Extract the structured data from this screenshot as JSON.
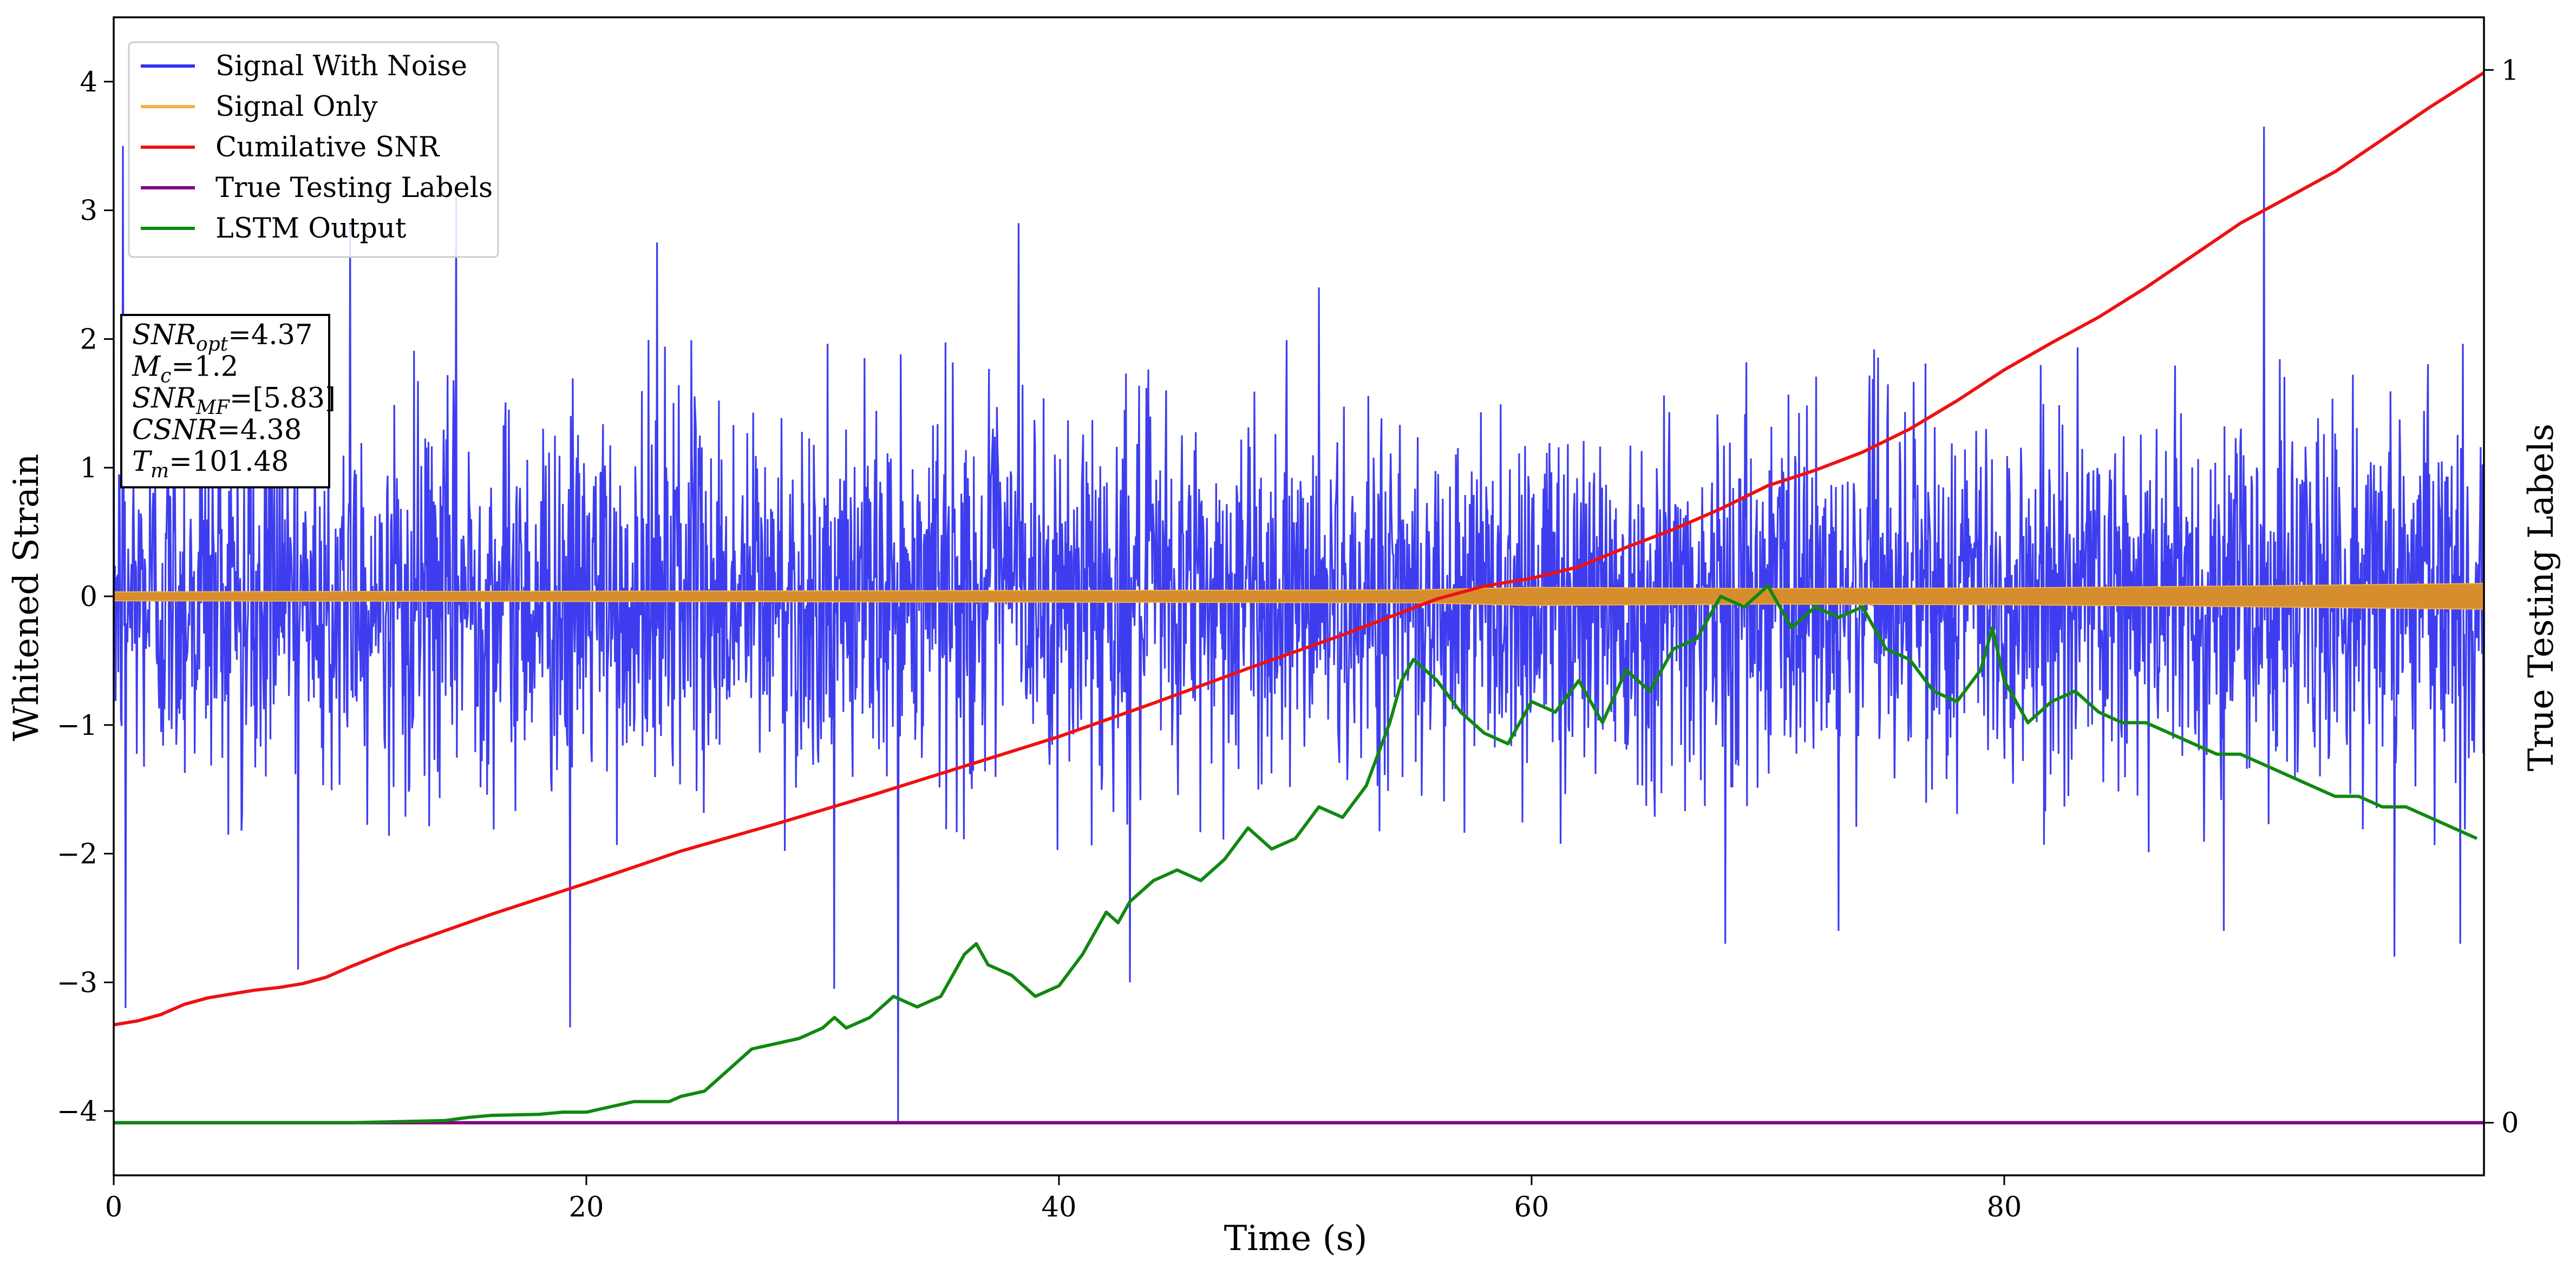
{
  "chart_data": {
    "type": "line",
    "xlabel": "Time (s)",
    "ylabel": "Whitened Strain",
    "y2label": "True Testing Labels",
    "xlim": [
      0,
      100.3
    ],
    "ylim": [
      -4.5,
      4.5
    ],
    "y2lim": [
      -0.05,
      1.05
    ],
    "xticks": [
      0,
      20,
      40,
      60,
      80
    ],
    "xtick_labels": [
      "0",
      "20",
      "40",
      "60",
      "80"
    ],
    "yticks": [
      -4,
      -3,
      -2,
      -1,
      0,
      1,
      2,
      3,
      4
    ],
    "ytick_labels": [
      "−4",
      "−3",
      "−2",
      "−1",
      "0",
      "1",
      "2",
      "3",
      "4"
    ],
    "y2ticks": [
      0,
      1
    ],
    "y2tick_labels": [
      "0",
      "1"
    ],
    "grid": false,
    "legend_position": "top-left",
    "legend": [
      {
        "label": "Signal With Noise",
        "color": "#3333ee"
      },
      {
        "label": "Signal Only",
        "color": "#f5b041"
      },
      {
        "label": "Cumilative SNR",
        "color": "#ee1111"
      },
      {
        "label": "True Testing Labels",
        "color": "#800080"
      },
      {
        "label": "LSTM Output",
        "color": "#118811"
      }
    ],
    "annotation": [
      {
        "base": "SNR",
        "sub": "opt",
        "value": "=4.37"
      },
      {
        "base": "M",
        "sub": "c",
        "value": "=1.2"
      },
      {
        "base": "SNR",
        "sub": "MF",
        "value": "=[5.83]"
      },
      {
        "base": "CSNR",
        "sub": "",
        "value": "=4.38"
      },
      {
        "base": "T",
        "sub": "m",
        "value": "=101.48"
      }
    ],
    "series": [
      {
        "name": "Signal With Noise",
        "axis": "left",
        "color": "#3333ee",
        "style": "dense-noise",
        "typical_range": [
          -2.0,
          2.0
        ],
        "spikes": [
          {
            "x": 0.4,
            "y": 3.5
          },
          {
            "x": 0.5,
            "y": -3.2
          },
          {
            "x": 7.8,
            "y": -2.9
          },
          {
            "x": 10.0,
            "y": 2.9
          },
          {
            "x": 14.5,
            "y": 3.1
          },
          {
            "x": 19.3,
            "y": -3.35
          },
          {
            "x": 23.0,
            "y": 2.75
          },
          {
            "x": 30.5,
            "y": -3.05
          },
          {
            "x": 33.2,
            "y": -4.1
          },
          {
            "x": 38.3,
            "y": 2.9
          },
          {
            "x": 43.0,
            "y": -3.0
          },
          {
            "x": 51.0,
            "y": 2.4
          },
          {
            "x": 68.2,
            "y": -2.7
          },
          {
            "x": 73.0,
            "y": -2.6
          },
          {
            "x": 89.3,
            "y": -2.6
          },
          {
            "x": 91.0,
            "y": 3.65
          },
          {
            "x": 96.5,
            "y": -2.8
          },
          {
            "x": 99.3,
            "y": -2.7
          }
        ]
      },
      {
        "name": "Signal Only",
        "axis": "left",
        "color": "#f5b041",
        "style": "band",
        "x": [
          0,
          20,
          40,
          55,
          60,
          70,
          80,
          90,
          100.3
        ],
        "amplitude": [
          0.035,
          0.04,
          0.045,
          0.05,
          0.07,
          0.06,
          0.065,
          0.08,
          0.1
        ]
      },
      {
        "name": "Cumilative SNR",
        "axis": "left",
        "color": "#ee1111",
        "x": [
          0,
          1,
          2,
          3,
          4,
          5,
          6,
          7,
          8,
          9,
          10,
          12,
          14,
          16,
          20,
          24,
          28,
          32,
          36,
          40,
          44,
          48,
          52,
          56,
          58,
          60,
          62,
          64,
          66,
          68,
          70,
          72,
          74,
          76,
          78,
          80,
          82,
          84,
          86,
          88,
          90,
          92,
          94,
          96,
          98,
          100.3
        ],
        "y": [
          -3.33,
          -3.3,
          -3.25,
          -3.17,
          -3.12,
          -3.09,
          -3.06,
          -3.04,
          -3.01,
          -2.96,
          -2.88,
          -2.73,
          -2.6,
          -2.47,
          -2.23,
          -1.98,
          -1.77,
          -1.55,
          -1.32,
          -1.09,
          -0.83,
          -0.56,
          -0.3,
          -0.02,
          0.08,
          0.14,
          0.23,
          0.38,
          0.52,
          0.68,
          0.86,
          0.98,
          1.12,
          1.3,
          1.52,
          1.76,
          1.97,
          2.17,
          2.4,
          2.65,
          2.9,
          3.1,
          3.3,
          3.55,
          3.8,
          4.07
        ]
      },
      {
        "name": "True Testing Labels",
        "axis": "right",
        "color": "#800080",
        "x": [
          0,
          100.3
        ],
        "y": [
          0,
          0
        ]
      },
      {
        "name": "LSTM Output",
        "axis": "right",
        "color": "#118811",
        "x": [
          0,
          10,
          14,
          15,
          16,
          18,
          19,
          20,
          21,
          22,
          23,
          23.5,
          24,
          25,
          26,
          26.5,
          27,
          28,
          29,
          30,
          30.5,
          31,
          32,
          32.5,
          33,
          34,
          35,
          36,
          36.5,
          37,
          38,
          39,
          40,
          41,
          42,
          42.5,
          43,
          44,
          45,
          46,
          47,
          48,
          49,
          50,
          51,
          52,
          53,
          54,
          54.5,
          55,
          56,
          57,
          58,
          59,
          60,
          61,
          62,
          63,
          64,
          65,
          66,
          67,
          68,
          69,
          70,
          71,
          72,
          73,
          74,
          75,
          76,
          77,
          78,
          79,
          79.5,
          80,
          81,
          82,
          83,
          84,
          85,
          86,
          87,
          88,
          89,
          90,
          91,
          92,
          93,
          94,
          95,
          96,
          97,
          98,
          99,
          100
        ],
        "y": [
          0,
          0,
          0.002,
          0.005,
          0.007,
          0.008,
          0.01,
          0.01,
          0.015,
          0.02,
          0.02,
          0.02,
          0.025,
          0.03,
          0.05,
          0.06,
          0.07,
          0.075,
          0.08,
          0.09,
          0.1,
          0.09,
          0.1,
          0.11,
          0.12,
          0.11,
          0.12,
          0.16,
          0.17,
          0.15,
          0.14,
          0.12,
          0.13,
          0.16,
          0.2,
          0.19,
          0.21,
          0.23,
          0.24,
          0.23,
          0.25,
          0.28,
          0.26,
          0.27,
          0.3,
          0.29,
          0.32,
          0.38,
          0.42,
          0.44,
          0.42,
          0.39,
          0.37,
          0.36,
          0.4,
          0.39,
          0.42,
          0.38,
          0.43,
          0.41,
          0.45,
          0.46,
          0.5,
          0.49,
          0.51,
          0.47,
          0.49,
          0.48,
          0.49,
          0.45,
          0.44,
          0.41,
          0.4,
          0.43,
          0.47,
          0.42,
          0.38,
          0.4,
          0.41,
          0.39,
          0.38,
          0.38,
          0.37,
          0.36,
          0.35,
          0.35,
          0.34,
          0.33,
          0.32,
          0.31,
          0.31,
          0.3,
          0.3,
          0.29,
          0.28,
          0.27
        ]
      }
    ]
  }
}
